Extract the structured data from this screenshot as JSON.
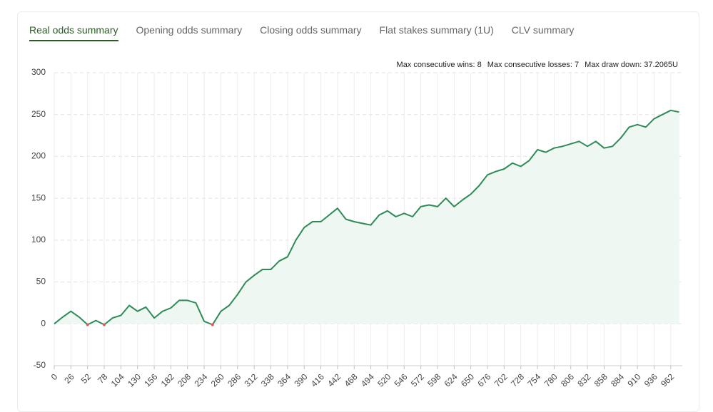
{
  "tabs": [
    "Real odds summary",
    "Opening odds summary",
    "Closing odds summary",
    "Flat stakes summary (1U)",
    "CLV summary"
  ],
  "active_tab": 0,
  "stats": [
    "Max consecutive wins: 8",
    "Max consecutive losses: 7",
    "Max draw down: 37.2065U"
  ],
  "chart_data": {
    "type": "line",
    "x": [
      0,
      13,
      26,
      39,
      52,
      65,
      78,
      91,
      104,
      117,
      130,
      143,
      156,
      169,
      182,
      195,
      208,
      221,
      234,
      247,
      260,
      273,
      286,
      299,
      312,
      325,
      338,
      351,
      364,
      377,
      390,
      403,
      416,
      429,
      442,
      455,
      468,
      481,
      494,
      507,
      520,
      533,
      546,
      559,
      572,
      585,
      598,
      611,
      624,
      637,
      650,
      663,
      676,
      689,
      702,
      715,
      728,
      741,
      754,
      767,
      780,
      793,
      806,
      819,
      832,
      845,
      858,
      871,
      884,
      897,
      910,
      923,
      936,
      949,
      962,
      975
    ],
    "values": [
      0,
      8,
      15,
      8,
      -1,
      4,
      -1,
      7,
      10,
      22,
      15,
      20,
      7,
      15,
      19,
      28,
      28,
      25,
      3,
      -1,
      15,
      22,
      35,
      50,
      58,
      65,
      65,
      75,
      80,
      100,
      115,
      122,
      122,
      130,
      138,
      125,
      122,
      120,
      118,
      130,
      135,
      128,
      132,
      128,
      140,
      142,
      140,
      150,
      140,
      148,
      155,
      165,
      178,
      182,
      185,
      192,
      188,
      195,
      208,
      205,
      210,
      212,
      215,
      218,
      212,
      218,
      210,
      212,
      222,
      235,
      238,
      235,
      245,
      250,
      255,
      253
    ],
    "color": "#2e8b57",
    "negative_color": "#e05a5a",
    "fill": "#eef7f1",
    "xlim": [
      0,
      980
    ],
    "ylim": [
      -50,
      300
    ],
    "xticks": [
      0,
      26,
      52,
      78,
      104,
      130,
      156,
      182,
      208,
      234,
      260,
      286,
      312,
      338,
      364,
      390,
      416,
      442,
      468,
      494,
      520,
      546,
      572,
      598,
      624,
      650,
      676,
      702,
      728,
      754,
      780,
      806,
      832,
      858,
      884,
      910,
      936,
      962
    ],
    "yticks": [
      -50,
      0,
      50,
      100,
      150,
      200,
      250,
      300
    ],
    "grid": true
  }
}
